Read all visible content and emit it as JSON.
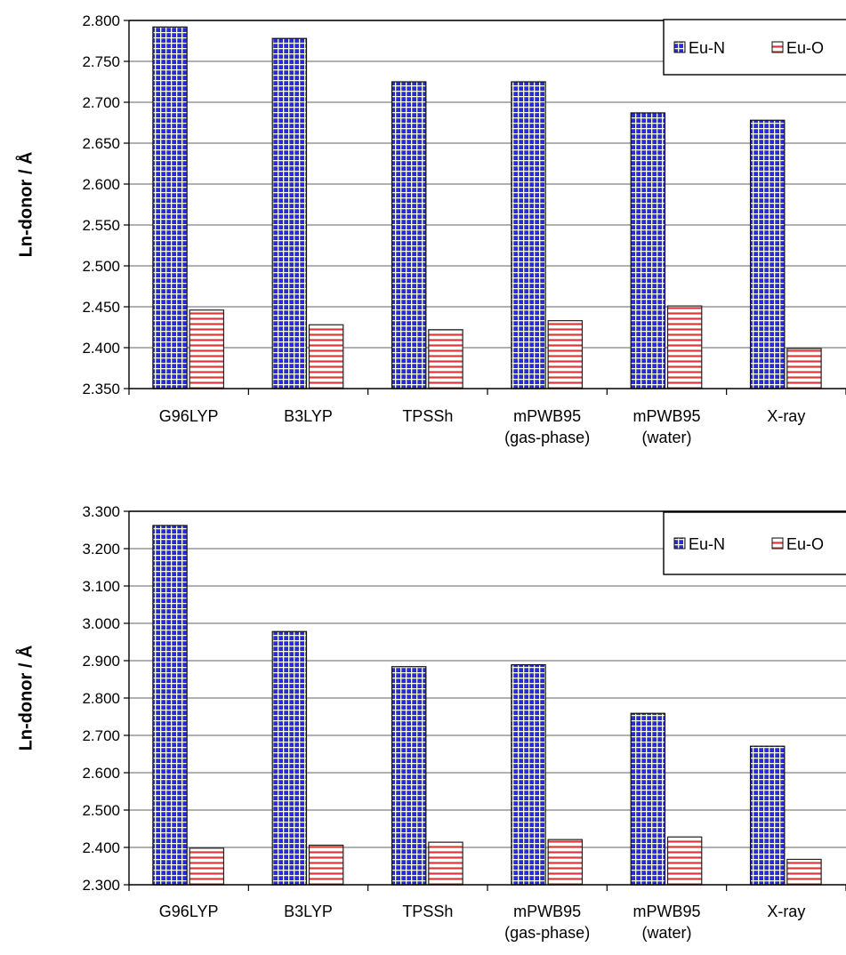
{
  "colors": {
    "eu_n_fill": "#2b2bd6",
    "eu_n_grid": "#ffffff",
    "eu_o_fill": "#ffffff",
    "eu_o_stripe": "#d63a3a",
    "gridline": "#808080",
    "axis": "#000000"
  },
  "chart_data": [
    {
      "type": "bar",
      "ylabel": "Ln-donor / Å",
      "categories": [
        "G96LYP",
        "B3LYP",
        "TPSSh",
        "mPWB95\n(gas-phase)",
        "mPWB95\n(water)",
        "X-ray"
      ],
      "ylim": [
        2.35,
        2.8
      ],
      "yticks": [
        "2.350",
        "2.400",
        "2.450",
        "2.500",
        "2.550",
        "2.600",
        "2.650",
        "2.700",
        "2.750",
        "2.800"
      ],
      "grid": true,
      "legend": "top-right",
      "series": [
        {
          "name": "Eu-N",
          "values": [
            2.792,
            2.778,
            2.725,
            2.725,
            2.687,
            2.678
          ]
        },
        {
          "name": "Eu-O",
          "values": [
            2.446,
            2.428,
            2.422,
            2.433,
            2.451,
            2.399
          ]
        }
      ]
    },
    {
      "type": "bar",
      "ylabel": "Ln-donor / Å",
      "categories": [
        "G96LYP",
        "B3LYP",
        "TPSSh",
        "mPWB95\n(gas-phase)",
        "mPWB95\n(water)",
        "X-ray"
      ],
      "ylim": [
        2.3,
        3.3
      ],
      "yticks": [
        "2.300",
        "2.400",
        "2.500",
        "2.600",
        "2.700",
        "2.800",
        "2.900",
        "3.000",
        "3.100",
        "3.200",
        "3.300"
      ],
      "grid": true,
      "legend": "top-right",
      "series": [
        {
          "name": "Eu-N",
          "values": [
            3.262,
            2.978,
            2.884,
            2.889,
            2.759,
            2.671
          ]
        },
        {
          "name": "Eu-O",
          "values": [
            2.398,
            2.406,
            2.414,
            2.421,
            2.428,
            2.368
          ]
        }
      ]
    }
  ]
}
